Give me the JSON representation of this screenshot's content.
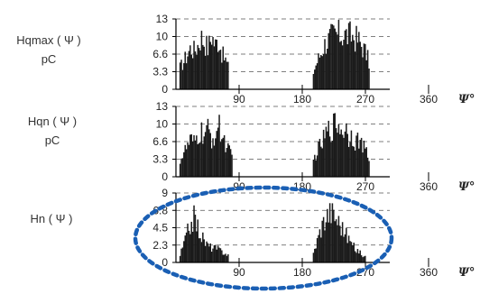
{
  "chart_data": [
    {
      "type": "bar",
      "ylabel_lines": [
        "Hqmax ( Ψ )",
        "pC"
      ],
      "yticks": [
        "13",
        "10",
        "6.6",
        "3.3",
        "0"
      ],
      "ylim": [
        0,
        13
      ],
      "xticks": [
        "90",
        "180",
        "270",
        "360"
      ],
      "xlim": [
        0,
        360
      ],
      "xunit": "Ψ°",
      "grid": "horizontal dashed",
      "clusters": [
        {
          "x_range": [
            5,
            75
          ],
          "points": [
            [
              5,
              5.2
            ],
            [
              10,
              6.5
            ],
            [
              15,
              8.2
            ],
            [
              20,
              10
            ],
            [
              25,
              9.2
            ],
            [
              30,
              10.5
            ],
            [
              35,
              12.5
            ],
            [
              40,
              11.3
            ],
            [
              45,
              9.8
            ],
            [
              50,
              13
            ],
            [
              55,
              10.5
            ],
            [
              60,
              12
            ],
            [
              65,
              8.2
            ],
            [
              70,
              7
            ],
            [
              75,
              4.5
            ]
          ]
        },
        {
          "x_range": [
            195,
            275
          ],
          "points": [
            [
              195,
              4.2
            ],
            [
              200,
              6.5
            ],
            [
              205,
              8.4
            ],
            [
              210,
              10.5
            ],
            [
              215,
              11.6
            ],
            [
              220,
              12.5
            ],
            [
              225,
              13
            ],
            [
              230,
              13
            ],
            [
              235,
              13
            ],
            [
              240,
              13
            ],
            [
              245,
              12.8
            ],
            [
              250,
              12.8
            ],
            [
              255,
              12.2
            ],
            [
              260,
              11.5
            ],
            [
              265,
              10.2
            ],
            [
              270,
              8.6
            ],
            [
              275,
              6
            ]
          ]
        }
      ]
    },
    {
      "type": "bar",
      "ylabel_lines": [
        "Hqn ( Ψ )",
        "pC"
      ],
      "yticks": [
        "13",
        "10",
        "6.6",
        "3.3",
        "0"
      ],
      "ylim": [
        0,
        13
      ],
      "xticks": [
        "90",
        "180",
        "270",
        "360"
      ],
      "xlim": [
        0,
        360
      ],
      "xunit": "Ψ°",
      "grid": "horizontal dashed",
      "clusters": [
        {
          "x_range": [
            5,
            80
          ],
          "points": [
            [
              5,
              4
            ],
            [
              10,
              5.5
            ],
            [
              15,
              7.2
            ],
            [
              20,
              8.5
            ],
            [
              25,
              7.8
            ],
            [
              30,
              9.5
            ],
            [
              35,
              10.5
            ],
            [
              40,
              9.8
            ],
            [
              45,
              11
            ],
            [
              50,
              8.8
            ],
            [
              55,
              10.2
            ],
            [
              60,
              12
            ],
            [
              65,
              9.5
            ],
            [
              70,
              8
            ],
            [
              75,
              6
            ],
            [
              80,
              4
            ]
          ]
        },
        {
          "x_range": [
            195,
            275
          ],
          "points": [
            [
              195,
              4
            ],
            [
              200,
              6
            ],
            [
              205,
              7.5
            ],
            [
              210,
              9
            ],
            [
              215,
              10.8
            ],
            [
              220,
              11.5
            ],
            [
              225,
              12.5
            ],
            [
              230,
              13
            ],
            [
              235,
              11
            ],
            [
              240,
              12
            ],
            [
              245,
              9.8
            ],
            [
              250,
              10.5
            ],
            [
              255,
              8.5
            ],
            [
              260,
              9
            ],
            [
              265,
              7
            ],
            [
              270,
              6.2
            ],
            [
              275,
              3.5
            ]
          ]
        }
      ]
    },
    {
      "type": "bar",
      "ylabel_lines": [
        "Hn ( Ψ )"
      ],
      "yticks": [
        "9",
        "6.8",
        "4.5",
        "2.3",
        "0"
      ],
      "ylim": [
        0,
        9
      ],
      "xticks": [
        "90",
        "180",
        "270",
        "360"
      ],
      "xlim": [
        0,
        360
      ],
      "xunit": "Ψ°",
      "grid": "horizontal dashed",
      "highlight": "dotted blue ellipse",
      "highlight_color": "#1a5fb4",
      "clusters": [
        {
          "x_range": [
            5,
            75
          ],
          "points": [
            [
              5,
              1.2
            ],
            [
              10,
              3
            ],
            [
              15,
              4.8
            ],
            [
              20,
              6.5
            ],
            [
              25,
              7.5
            ],
            [
              30,
              6
            ],
            [
              35,
              4.5
            ],
            [
              40,
              3.5
            ],
            [
              45,
              2.8
            ],
            [
              50,
              2.5
            ],
            [
              55,
              2.4
            ],
            [
              60,
              2.2
            ],
            [
              65,
              1.8
            ],
            [
              70,
              1.5
            ],
            [
              75,
              1
            ]
          ]
        },
        {
          "x_range": [
            195,
            270
          ],
          "points": [
            [
              195,
              1.5
            ],
            [
              200,
              3.5
            ],
            [
              205,
              5.5
            ],
            [
              210,
              7
            ],
            [
              215,
              8
            ],
            [
              220,
              8.5
            ],
            [
              225,
              7.8
            ],
            [
              230,
              7
            ],
            [
              235,
              6
            ],
            [
              240,
              5
            ],
            [
              245,
              4
            ],
            [
              250,
              3
            ],
            [
              255,
              2.2
            ],
            [
              260,
              1.8
            ],
            [
              265,
              1.2
            ],
            [
              270,
              0.8
            ]
          ]
        }
      ]
    }
  ],
  "style": {
    "bar_color": "#1a1a1a",
    "grid_color": "#555555",
    "axis_color": "#000000"
  }
}
